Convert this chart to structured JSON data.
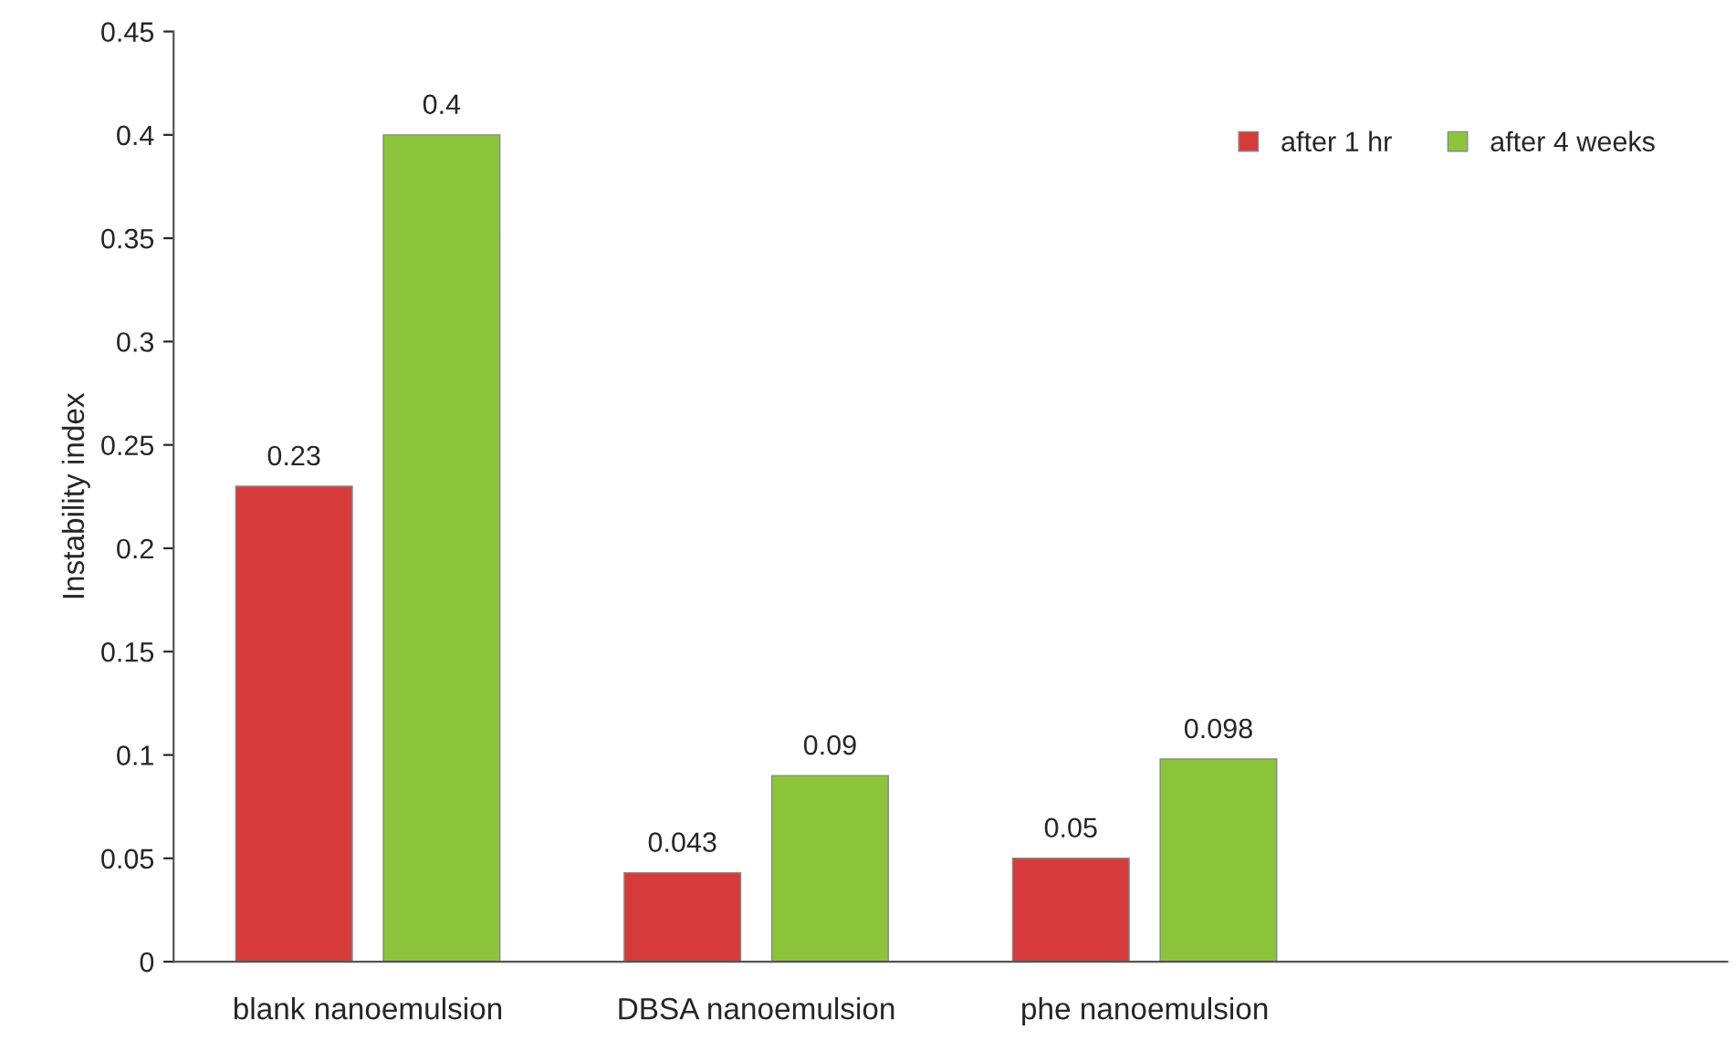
{
  "chart_data": {
    "type": "bar",
    "ylabel": "Instability index",
    "categories": [
      "blank nanoemulsion",
      "DBSA nanoemulsion",
      "phe nanoemulsion",
      null
    ],
    "series": [
      {
        "name": "after 1 hr",
        "color": "#d63b3b",
        "values": [
          0.23,
          0.043,
          0.05,
          null
        ]
      },
      {
        "name": "after 4 weeks",
        "color": "#8cc43c",
        "values": [
          0.4,
          0.09,
          0.098,
          null
        ]
      }
    ],
    "ylim": [
      0,
      0.45
    ],
    "yticks": [
      0,
      0.05,
      0.1,
      0.15,
      0.2,
      0.25,
      0.3,
      0.35,
      0.4,
      0.45
    ],
    "data_labels": true,
    "legend": "top right",
    "grid": false
  }
}
